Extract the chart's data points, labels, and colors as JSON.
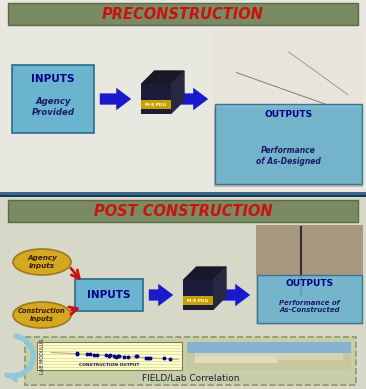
{
  "bg_color": "#f0f0e8",
  "top_section_bg": "#e8e8e0",
  "top_header_bg": "#7a8a62",
  "top_header_text": "PRECONSTRUCTION",
  "top_header_text_color": "#cc1111",
  "bottom_section_bg": "#d8d8c8",
  "bottom_header_bg": "#7a8a62",
  "bottom_header_text": "POST CONSTRUCTION",
  "bottom_header_text_color": "#cc1111",
  "inputs_box_color": "#6ab4d0",
  "inputs_text": "INPUTS",
  "agency_text": "Agency\nProvided",
  "outputs_box_color": "#6ab4d0",
  "outputs_text": "OUTPUTS",
  "perf_designed_text": "Performance\nof As-Designed",
  "perf_constructed_text": "Performance of\nAs-Constructed",
  "arrow_color": "#1a1acc",
  "red_arrow_color": "#cc1111",
  "agency_inputs_text": "Agency\nInputs",
  "construction_inputs_text": "Construction\nInputs",
  "ellipse_color": "#d4a820",
  "curve_arrow_color": "#90c8d8",
  "field_lab_text": "FIELD/Lab Correlation",
  "construction_output_text": "CONSTRUCTION OUTPUT",
  "lab_modulus_text": "LAB MODULUS",
  "field_box_bg": "#c8cfa8",
  "field_box_border": "#8a9a6a",
  "scatter_bg": "#ffffcc",
  "divider_color1": "#3a6888",
  "divider_color2": "#1a3a5a",
  "photo_crack_light": "#e8e4dc",
  "photo_crack_dark": "#c0b8a8",
  "photo_fault_light": "#c8c0b0",
  "photo_fault_dark": "#a89880",
  "photo_field_sky": "#a8c888",
  "photo_field_ground": "#d8d0b0"
}
